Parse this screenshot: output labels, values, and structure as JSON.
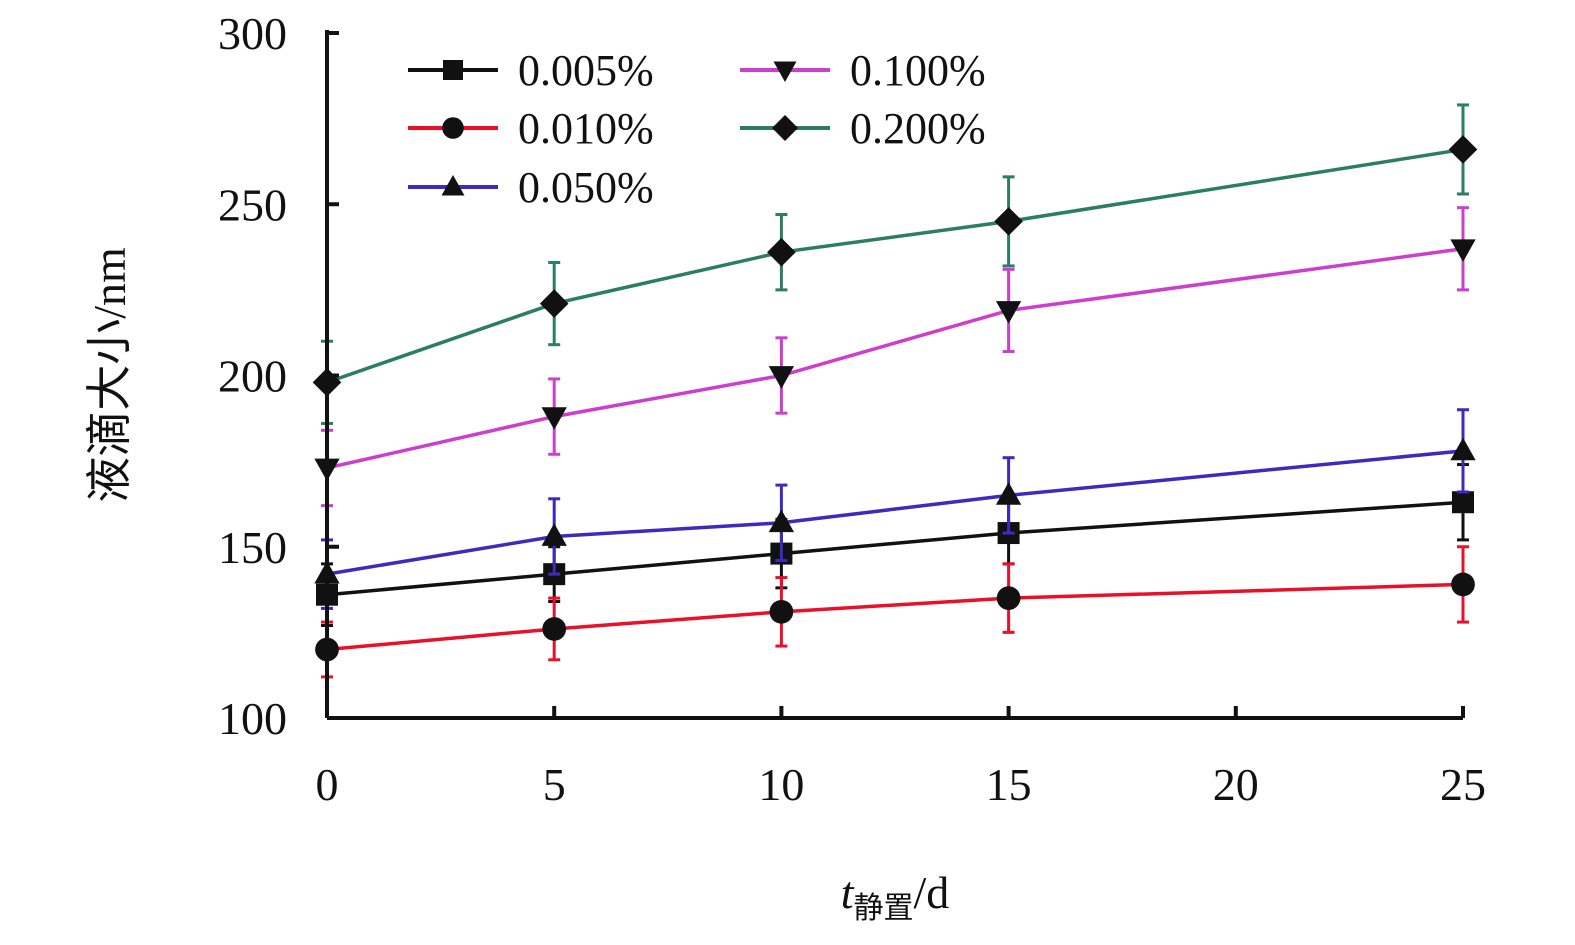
{
  "chart_data": {
    "type": "line",
    "xlabel": {
      "main": "t",
      "sub": "静置",
      "unit": "/d"
    },
    "ylabel": "液滴大小/nm",
    "x": [
      0,
      5,
      10,
      15,
      25
    ],
    "xticks": [
      0,
      5,
      10,
      15,
      20,
      25
    ],
    "yticks": [
      100,
      150,
      200,
      250,
      300
    ],
    "xlim": [
      0,
      25
    ],
    "ylim": [
      100,
      300
    ],
    "grid": false,
    "legend_position": "top-left",
    "series": [
      {
        "name": "0.005%",
        "color": "#111111",
        "marker": "square",
        "values": [
          136,
          142,
          148,
          154,
          163
        ],
        "errors": [
          9,
          8,
          10,
          9,
          11
        ]
      },
      {
        "name": "0.010%",
        "color": "#e8102a",
        "marker": "circle",
        "values": [
          120,
          126,
          131,
          135,
          139
        ],
        "errors": [
          8,
          9,
          10,
          10,
          11
        ]
      },
      {
        "name": "0.050%",
        "color": "#3c2bbf",
        "marker": "triangle-up",
        "values": [
          142,
          153,
          157,
          165,
          178
        ],
        "errors": [
          10,
          11,
          11,
          11,
          12
        ]
      },
      {
        "name": "0.100%",
        "color": "#cc3fcc",
        "marker": "triangle-down",
        "values": [
          173,
          188,
          200,
          219,
          237
        ],
        "errors": [
          11,
          11,
          11,
          12,
          12
        ]
      },
      {
        "name": "0.200%",
        "color": "#2b7d63",
        "marker": "diamond",
        "values": [
          198,
          221,
          236,
          245,
          266
        ],
        "errors": [
          12,
          12,
          11,
          13,
          13
        ]
      }
    ]
  }
}
